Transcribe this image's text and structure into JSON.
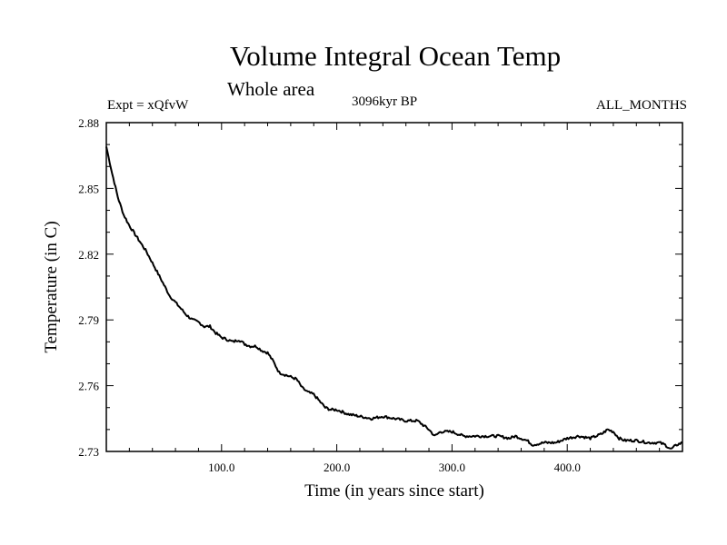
{
  "header": {
    "title": "Volume Integral Ocean Temp",
    "subtitle": "Whole area",
    "experiment": "Expt = xQfvW",
    "period": "3096kyr BP",
    "months": "ALL_MONTHS"
  },
  "chart_data": {
    "type": "line",
    "title": "Volume Integral Ocean Temp",
    "subtitle": "Whole area",
    "xlabel": "Time (in years since start)",
    "ylabel": "Temperature (in C)",
    "xlim": [
      0,
      500
    ],
    "ylim": [
      2.73,
      2.88
    ],
    "xticks": [
      100,
      200,
      300,
      400
    ],
    "xtick_labels": [
      "100.0",
      "200.0",
      "300.0",
      "400.0"
    ],
    "yticks": [
      2.73,
      2.76,
      2.79,
      2.82,
      2.85,
      2.88
    ],
    "ytick_labels": [
      "2.73",
      "2.76",
      "2.79",
      "2.82",
      "2.85",
      "2.88"
    ],
    "grid": false,
    "series": [
      {
        "name": "Temperature",
        "x": [
          0,
          5,
          10,
          15,
          20,
          25,
          30,
          35,
          40,
          45,
          50,
          55,
          60,
          65,
          70,
          75,
          80,
          85,
          90,
          95,
          100,
          105,
          110,
          115,
          120,
          125,
          130,
          135,
          140,
          145,
          150,
          155,
          160,
          165,
          170,
          175,
          180,
          185,
          190,
          195,
          200,
          210,
          220,
          230,
          240,
          250,
          260,
          270,
          280,
          285,
          290,
          300,
          310,
          320,
          330,
          340,
          350,
          355,
          360,
          365,
          370,
          380,
          390,
          400,
          410,
          420,
          430,
          435,
          440,
          445,
          450,
          460,
          470,
          480,
          485,
          490,
          495,
          500
        ],
        "y": [
          2.869,
          2.857,
          2.846,
          2.838,
          2.833,
          2.829,
          2.825,
          2.821,
          2.816,
          2.811,
          2.806,
          2.801,
          2.798,
          2.795,
          2.792,
          2.79,
          2.789,
          2.787,
          2.787,
          2.784,
          2.782,
          2.781,
          2.78,
          2.781,
          2.779,
          2.778,
          2.778,
          2.776,
          2.775,
          2.771,
          2.766,
          2.765,
          2.764,
          2.763,
          2.759,
          2.757,
          2.756,
          2.753,
          2.75,
          2.749,
          2.749,
          2.747,
          2.746,
          2.745,
          2.746,
          2.745,
          2.744,
          2.744,
          2.74,
          2.737,
          2.739,
          2.739,
          2.737,
          2.737,
          2.737,
          2.737,
          2.736,
          2.737,
          2.736,
          2.735,
          2.733,
          2.734,
          2.734,
          2.736,
          2.737,
          2.736,
          2.738,
          2.74,
          2.739,
          2.736,
          2.735,
          2.735,
          2.734,
          2.734,
          2.733,
          2.731,
          2.733,
          2.734
        ]
      }
    ]
  }
}
